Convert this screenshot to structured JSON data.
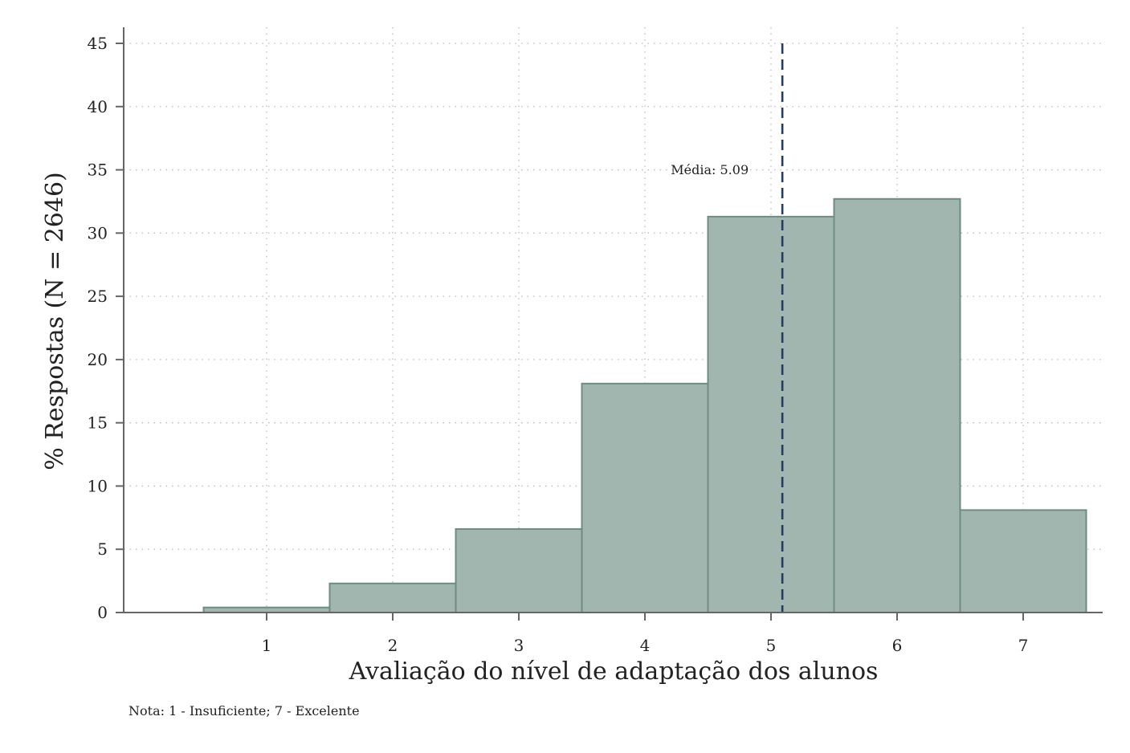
{
  "chart_data": {
    "type": "bar",
    "categories": [
      "1",
      "2",
      "3",
      "4",
      "5",
      "6",
      "7"
    ],
    "values": [
      0.4,
      2.3,
      6.6,
      18.1,
      31.3,
      32.7,
      8.1
    ],
    "xlabel": "Avaliação do nível de adaptação dos alunos",
    "ylabel": "% Respostas (N = 2646)",
    "xlim": [
      0,
      7.7
    ],
    "ylim": [
      0,
      45
    ],
    "yticks": [
      "0",
      "5",
      "10",
      "15",
      "20",
      "25",
      "30",
      "35",
      "40",
      "45"
    ],
    "grid": true,
    "mean": {
      "value": 5.09,
      "label": "Média: 5.09"
    },
    "note": "Nota: 1 - Insuficiente; 7 - Excelente",
    "colors": {
      "bar_fill": "#a2b6b0",
      "bar_stroke": "#6e8c81",
      "mean_line": "#1f3f66",
      "grid": "#bbbbbb",
      "axis": "#666666"
    }
  }
}
